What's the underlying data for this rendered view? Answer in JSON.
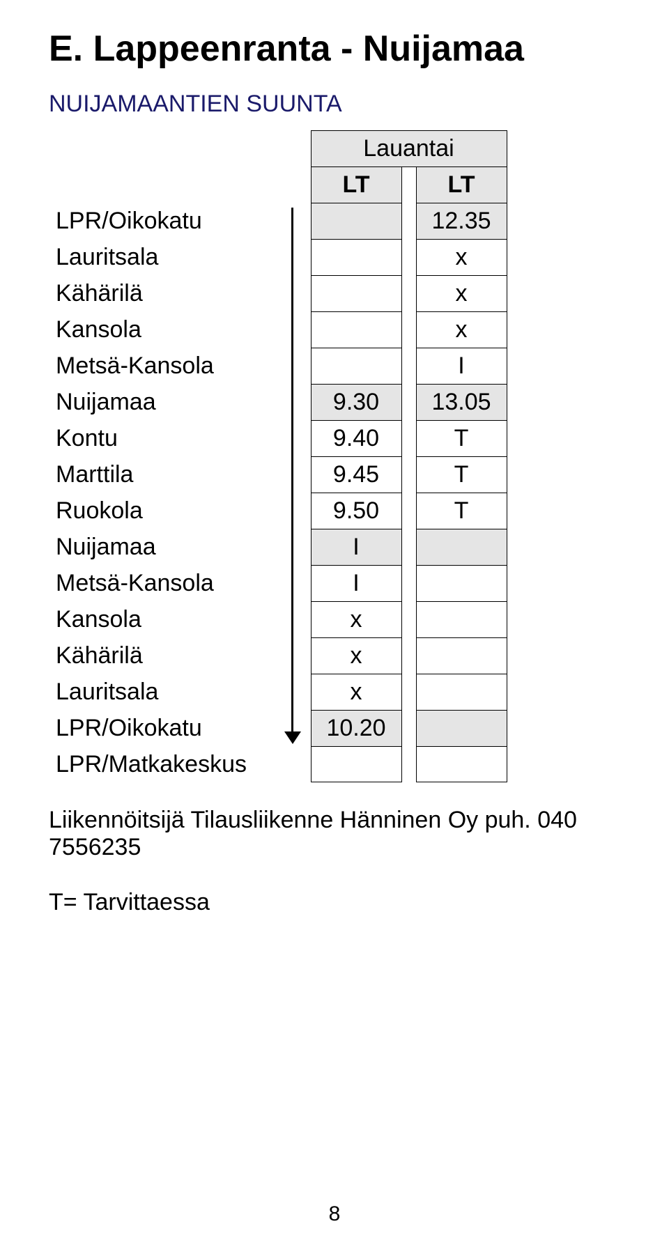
{
  "title": "E.  Lappeenranta - Nuijamaa",
  "subtitle": "NUIJAMAANTIEN SUUNTA",
  "day_header": "Lauantai",
  "col_labels": {
    "c1": "LT",
    "c2": "LT"
  },
  "rows": [
    {
      "stop": "LPR/Oikokatu",
      "c1": "",
      "c2": "12.35",
      "shaded": true
    },
    {
      "stop": "Lauritsala",
      "c1": "",
      "c2": "x",
      "shaded": false
    },
    {
      "stop": "Kähärilä",
      "c1": "",
      "c2": "x",
      "shaded": false
    },
    {
      "stop": "Kansola",
      "c1": "",
      "c2": "x",
      "shaded": false
    },
    {
      "stop": "Metsä-Kansola",
      "c1": "",
      "c2": "I",
      "shaded": false
    },
    {
      "stop": "Nuijamaa",
      "c1": "9.30",
      "c2": "13.05",
      "shaded": true
    },
    {
      "stop": "Kontu",
      "c1": "9.40",
      "c2": "T",
      "shaded": false
    },
    {
      "stop": "Marttila",
      "c1": "9.45",
      "c2": "T",
      "shaded": false
    },
    {
      "stop": "Ruokola",
      "c1": "9.50",
      "c2": "T",
      "shaded": false
    },
    {
      "stop": "Nuijamaa",
      "c1": "I",
      "c2": "",
      "shaded": true
    },
    {
      "stop": "Metsä-Kansola",
      "c1": "I",
      "c2": "",
      "shaded": false
    },
    {
      "stop": "Kansola",
      "c1": "x",
      "c2": "",
      "shaded": false
    },
    {
      "stop": "Kähärilä",
      "c1": "x",
      "c2": "",
      "shaded": false
    },
    {
      "stop": "Lauritsala",
      "c1": "x",
      "c2": "",
      "shaded": false
    },
    {
      "stop": "LPR/Oikokatu",
      "c1": "10.20",
      "c2": "",
      "shaded": true
    },
    {
      "stop": "LPR/Matkakeskus",
      "c1": "",
      "c2": "",
      "shaded": false
    }
  ],
  "operator_line": "Liikennöitsijä Tilausliikenne Hänninen Oy puh. 040 7556235",
  "note": "T= Tarvittaessa",
  "page_number": "8",
  "style": {
    "shaded_bg": "#e5e5e5",
    "border_color": "#000000",
    "title_color": "#000000",
    "subtitle_color": "#1a1a6a",
    "font_family": "Arial, Helvetica, sans-serif"
  },
  "arrow": {
    "from_row": 0,
    "to_row": 14
  }
}
